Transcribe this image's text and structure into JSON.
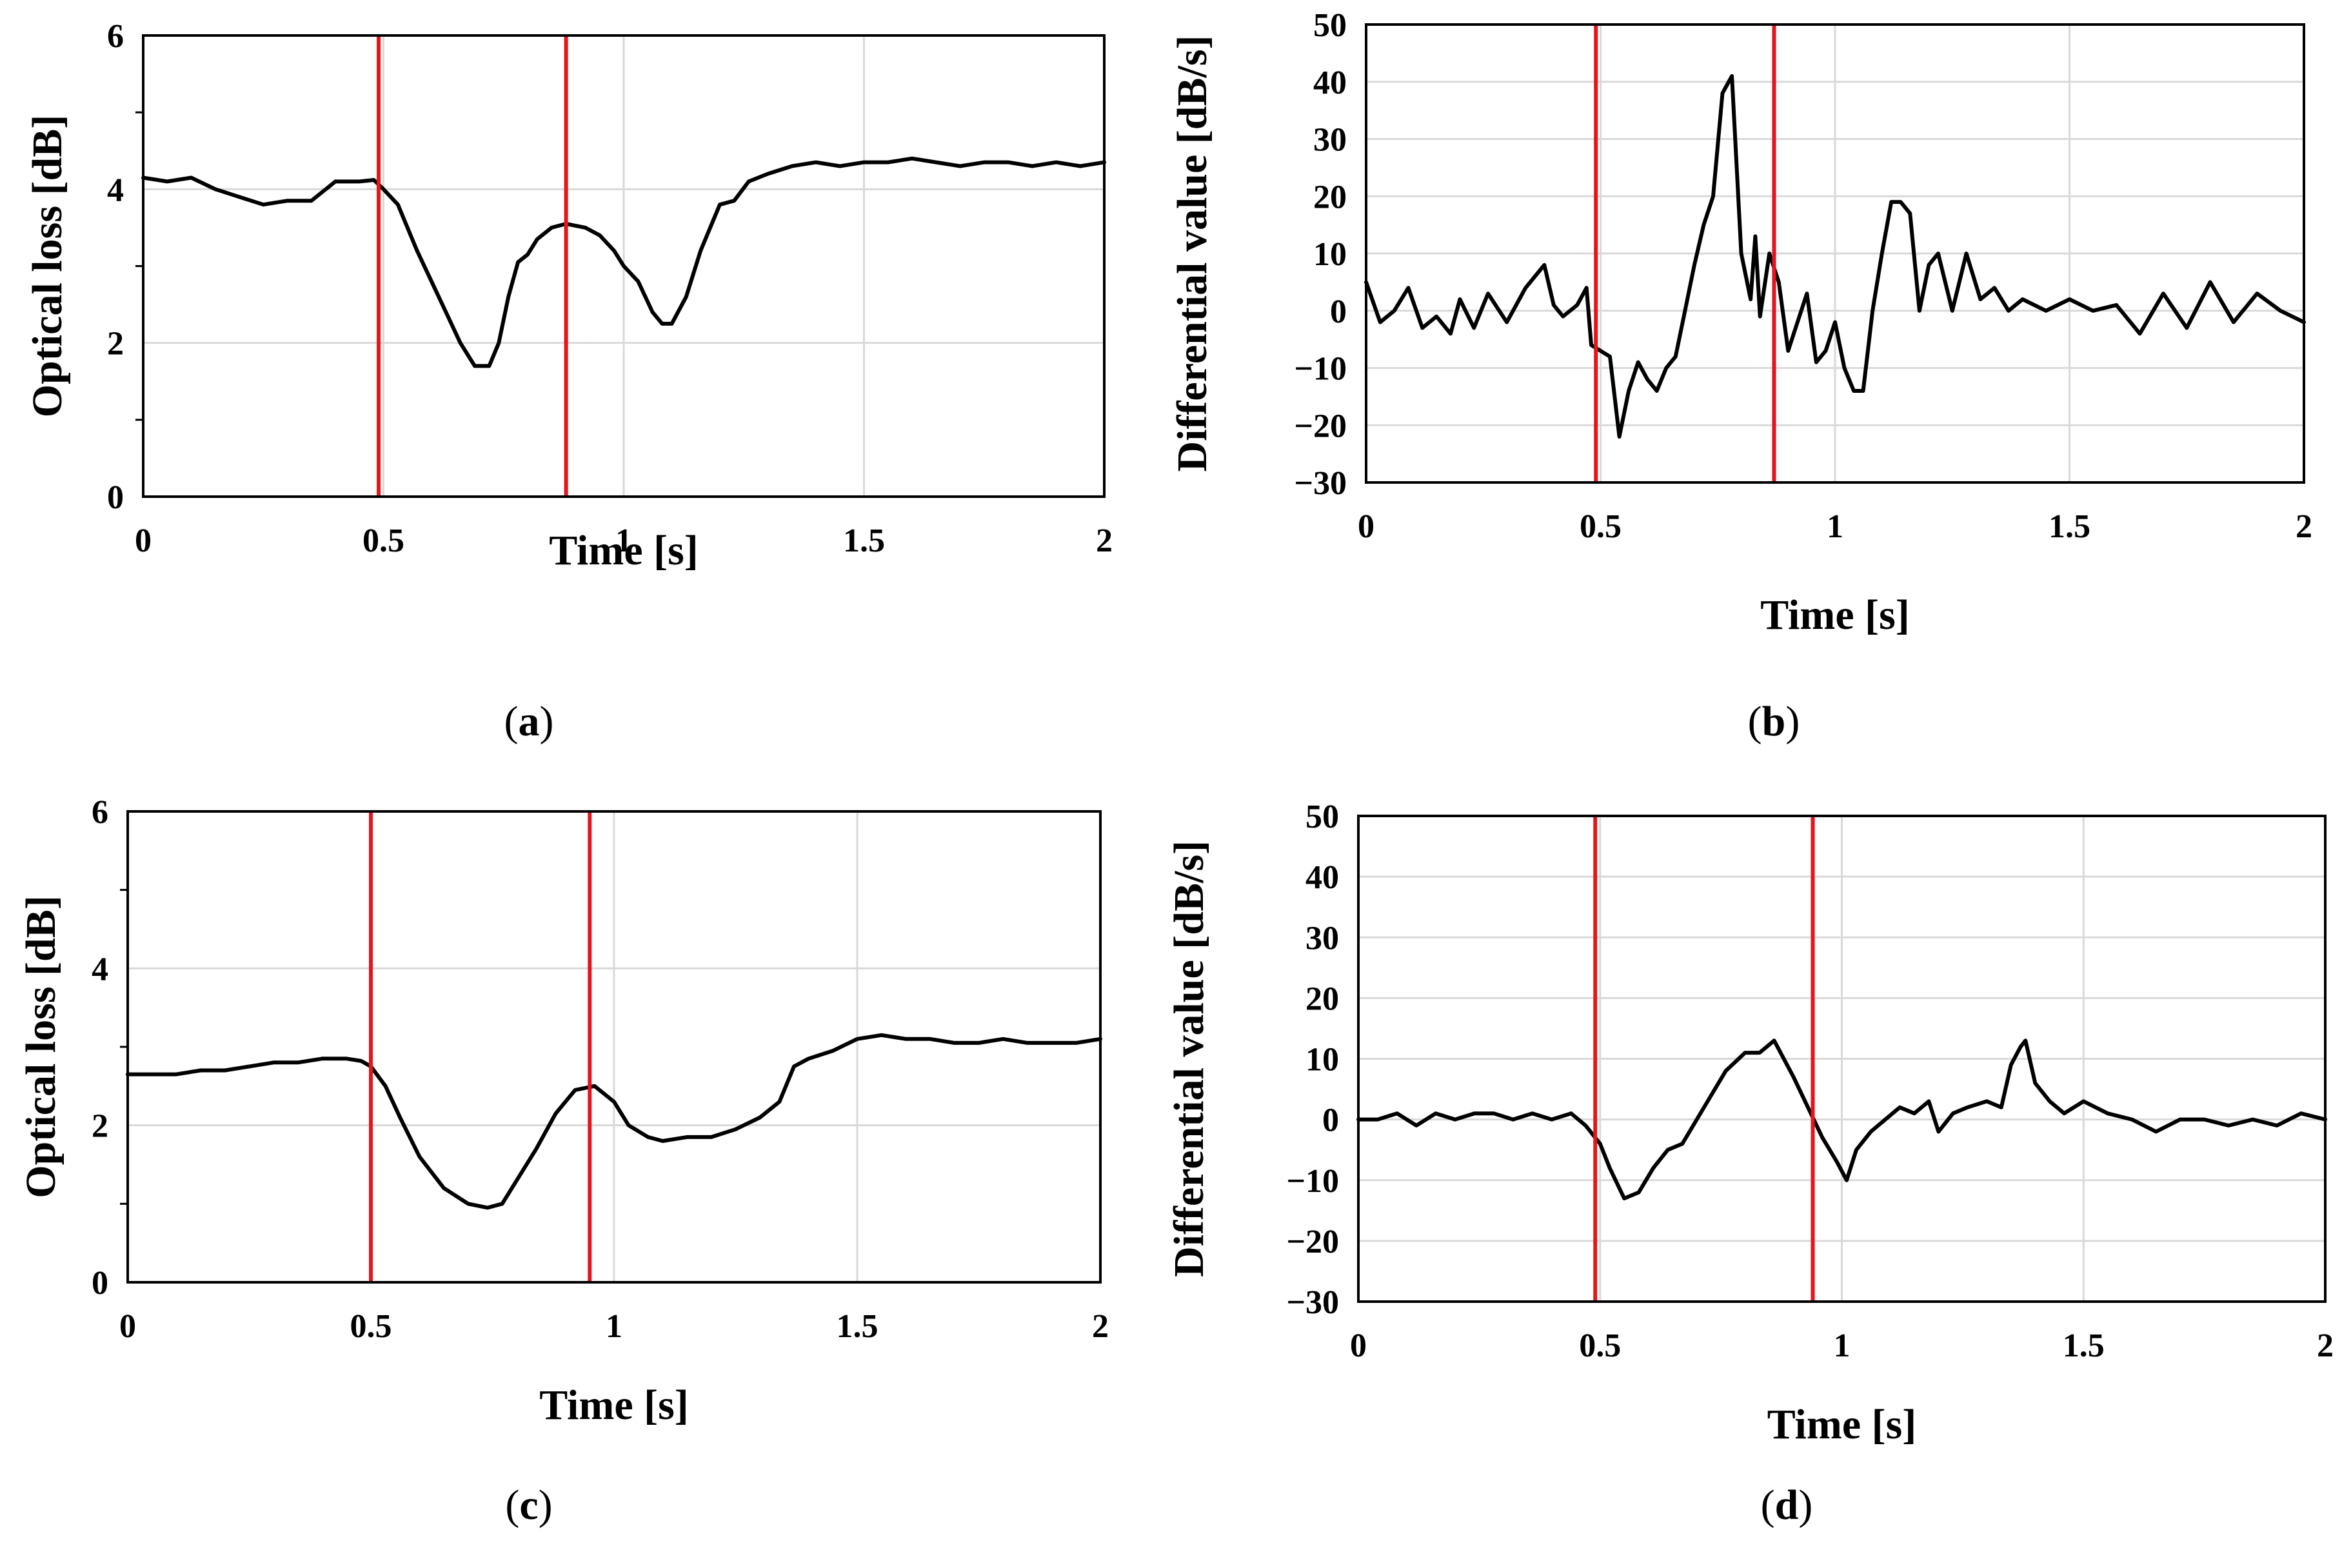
{
  "figure": {
    "colors": {
      "series": "#000000",
      "marker": "#e6141b",
      "grid": "#d9d9d9",
      "frame": "#000000"
    }
  },
  "chart_data": [
    {
      "id": "a",
      "type": "line",
      "caption": "a",
      "xlabel": "Time [s]",
      "ylabel": "Optical loss [dB]",
      "xlim": [
        0,
        2
      ],
      "ylim": [
        0,
        6
      ],
      "xticks": [
        0,
        0.5,
        1,
        1.5,
        2
      ],
      "xtick_labels": [
        "0",
        "0.5",
        "1",
        "1.5",
        "2"
      ],
      "yticks": [
        0,
        2,
        4,
        6
      ],
      "ytick_labels": [
        "0",
        "2",
        "4",
        "6"
      ],
      "vertical_markers": [
        0.49,
        0.88
      ],
      "series": [
        {
          "name": "Optical loss",
          "x": [
            0,
            0.05,
            0.1,
            0.15,
            0.2,
            0.25,
            0.3,
            0.35,
            0.4,
            0.45,
            0.48,
            0.5,
            0.53,
            0.57,
            0.6,
            0.63,
            0.66,
            0.69,
            0.72,
            0.74,
            0.76,
            0.78,
            0.8,
            0.82,
            0.85,
            0.88,
            0.92,
            0.95,
            0.98,
            1.0,
            1.03,
            1.06,
            1.08,
            1.1,
            1.13,
            1.16,
            1.2,
            1.23,
            1.26,
            1.3,
            1.35,
            1.4,
            1.45,
            1.5,
            1.55,
            1.6,
            1.65,
            1.7,
            1.75,
            1.8,
            1.85,
            1.9,
            1.95,
            2.0
          ],
          "y": [
            4.15,
            4.1,
            4.15,
            4.0,
            3.9,
            3.8,
            3.85,
            3.85,
            4.1,
            4.1,
            4.12,
            4.0,
            3.8,
            3.2,
            2.8,
            2.4,
            2.0,
            1.7,
            1.7,
            2.0,
            2.6,
            3.05,
            3.15,
            3.35,
            3.5,
            3.55,
            3.5,
            3.4,
            3.2,
            3.0,
            2.8,
            2.4,
            2.25,
            2.25,
            2.6,
            3.2,
            3.8,
            3.85,
            4.1,
            4.2,
            4.3,
            4.35,
            4.3,
            4.35,
            4.35,
            4.4,
            4.35,
            4.3,
            4.35,
            4.35,
            4.3,
            4.35,
            4.3,
            4.35
          ]
        }
      ]
    },
    {
      "id": "b",
      "type": "line",
      "caption": "b",
      "xlabel": "Time [s]",
      "ylabel": "Differential value [dB/s]",
      "xlim": [
        0,
        2
      ],
      "ylim": [
        -30,
        50
      ],
      "xticks": [
        0,
        0.5,
        1,
        1.5,
        2
      ],
      "xtick_labels": [
        "0",
        "0.5",
        "1",
        "1.5",
        "2"
      ],
      "yticks": [
        -30,
        -20,
        -10,
        0,
        10,
        20,
        30,
        40,
        50
      ],
      "ytick_labels": [
        "−30",
        "−20",
        "−10",
        "0",
        "10",
        "20",
        "30",
        "40",
        "50"
      ],
      "vertical_markers": [
        0.49,
        0.87
      ],
      "series": [
        {
          "name": "Differential value",
          "x": [
            0,
            0.03,
            0.06,
            0.09,
            0.12,
            0.15,
            0.18,
            0.2,
            0.23,
            0.26,
            0.3,
            0.34,
            0.38,
            0.4,
            0.42,
            0.45,
            0.47,
            0.48,
            0.5,
            0.52,
            0.54,
            0.56,
            0.58,
            0.6,
            0.62,
            0.64,
            0.66,
            0.68,
            0.7,
            0.72,
            0.74,
            0.76,
            0.78,
            0.8,
            0.82,
            0.83,
            0.84,
            0.86,
            0.88,
            0.9,
            0.92,
            0.94,
            0.96,
            0.98,
            1.0,
            1.02,
            1.04,
            1.06,
            1.08,
            1.1,
            1.12,
            1.14,
            1.16,
            1.18,
            1.2,
            1.22,
            1.25,
            1.28,
            1.31,
            1.34,
            1.37,
            1.4,
            1.45,
            1.5,
            1.55,
            1.6,
            1.65,
            1.7,
            1.75,
            1.8,
            1.85,
            1.9,
            1.95,
            2.0
          ],
          "y": [
            5,
            -2,
            0,
            4,
            -3,
            -1,
            -4,
            2,
            -3,
            3,
            -2,
            4,
            8,
            1,
            -1,
            1,
            4,
            -6,
            -7,
            -8,
            -22,
            -14,
            -9,
            -12,
            -14,
            -10,
            -8,
            0,
            8,
            15,
            20,
            38,
            41,
            10,
            2,
            13,
            -1,
            10,
            5,
            -7,
            -2,
            3,
            -9,
            -7,
            -2,
            -10,
            -14,
            -14,
            0,
            10,
            19,
            19,
            17,
            0,
            8,
            10,
            0,
            10,
            2,
            4,
            0,
            2,
            0,
            2,
            0,
            1,
            -4,
            3,
            -3,
            5,
            -2,
            3,
            0,
            -2
          ]
        }
      ]
    },
    {
      "id": "c",
      "type": "line",
      "caption": "c",
      "xlabel": "Time [s]",
      "ylabel": "Optical loss [dB]",
      "xlim": [
        0,
        2
      ],
      "ylim": [
        0,
        6
      ],
      "xticks": [
        0,
        0.5,
        1,
        1.5,
        2
      ],
      "xtick_labels": [
        "0",
        "0.5",
        "1",
        "1.5",
        "2"
      ],
      "yticks": [
        0,
        2,
        4,
        6
      ],
      "ytick_labels": [
        "0",
        "2",
        "4",
        "6"
      ],
      "vertical_markers": [
        0.5,
        0.95
      ],
      "series": [
        {
          "name": "Optical loss",
          "x": [
            0,
            0.05,
            0.1,
            0.15,
            0.2,
            0.25,
            0.3,
            0.35,
            0.4,
            0.45,
            0.48,
            0.5,
            0.53,
            0.56,
            0.6,
            0.65,
            0.7,
            0.74,
            0.77,
            0.8,
            0.84,
            0.88,
            0.92,
            0.96,
            1.0,
            1.03,
            1.07,
            1.1,
            1.15,
            1.2,
            1.25,
            1.3,
            1.34,
            1.37,
            1.4,
            1.45,
            1.5,
            1.55,
            1.6,
            1.65,
            1.7,
            1.75,
            1.8,
            1.85,
            1.9,
            1.95,
            2.0
          ],
          "y": [
            2.65,
            2.65,
            2.65,
            2.7,
            2.7,
            2.75,
            2.8,
            2.8,
            2.85,
            2.85,
            2.82,
            2.75,
            2.5,
            2.1,
            1.6,
            1.2,
            1.0,
            0.95,
            1.0,
            1.3,
            1.7,
            2.15,
            2.45,
            2.5,
            2.3,
            2.0,
            1.85,
            1.8,
            1.85,
            1.85,
            1.95,
            2.1,
            2.3,
            2.75,
            2.85,
            2.95,
            3.1,
            3.15,
            3.1,
            3.1,
            3.05,
            3.05,
            3.1,
            3.05,
            3.05,
            3.05,
            3.1
          ]
        }
      ]
    },
    {
      "id": "d",
      "type": "line",
      "caption": "d",
      "xlabel": "Time [s]",
      "ylabel": "Differential value [dB/s]",
      "xlim": [
        0,
        2
      ],
      "ylim": [
        -30,
        50
      ],
      "xticks": [
        0,
        0.5,
        1,
        1.5,
        2
      ],
      "xtick_labels": [
        "0",
        "0.5",
        "1",
        "1.5",
        "2"
      ],
      "yticks": [
        -30,
        -20,
        -10,
        0,
        10,
        20,
        30,
        40,
        50
      ],
      "ytick_labels": [
        "−30",
        "−20",
        "−10",
        "0",
        "10",
        "20",
        "30",
        "40",
        "50"
      ],
      "vertical_markers": [
        0.49,
        0.94
      ],
      "series": [
        {
          "name": "Differential value",
          "x": [
            0,
            0.04,
            0.08,
            0.12,
            0.16,
            0.2,
            0.24,
            0.28,
            0.32,
            0.36,
            0.4,
            0.44,
            0.47,
            0.5,
            0.52,
            0.55,
            0.58,
            0.61,
            0.64,
            0.67,
            0.7,
            0.73,
            0.76,
            0.8,
            0.83,
            0.86,
            0.88,
            0.9,
            0.93,
            0.96,
            0.99,
            1.01,
            1.03,
            1.06,
            1.09,
            1.12,
            1.15,
            1.18,
            1.2,
            1.23,
            1.26,
            1.3,
            1.33,
            1.35,
            1.37,
            1.38,
            1.4,
            1.43,
            1.46,
            1.5,
            1.55,
            1.6,
            1.65,
            1.7,
            1.75,
            1.8,
            1.85,
            1.9,
            1.95,
            2.0
          ],
          "y": [
            0,
            0,
            1,
            -1,
            1,
            0,
            1,
            1,
            0,
            1,
            0,
            1,
            -1,
            -4,
            -8,
            -13,
            -12,
            -8,
            -5,
            -4,
            0,
            4,
            8,
            11,
            11,
            13,
            10,
            7,
            2,
            -3,
            -7,
            -10,
            -5,
            -2,
            0,
            2,
            1,
            3,
            -2,
            1,
            2,
            3,
            2,
            9,
            12,
            13,
            6,
            3,
            1,
            3,
            1,
            0,
            -2,
            0,
            0,
            -1,
            0,
            -1,
            1,
            0
          ]
        }
      ]
    }
  ]
}
